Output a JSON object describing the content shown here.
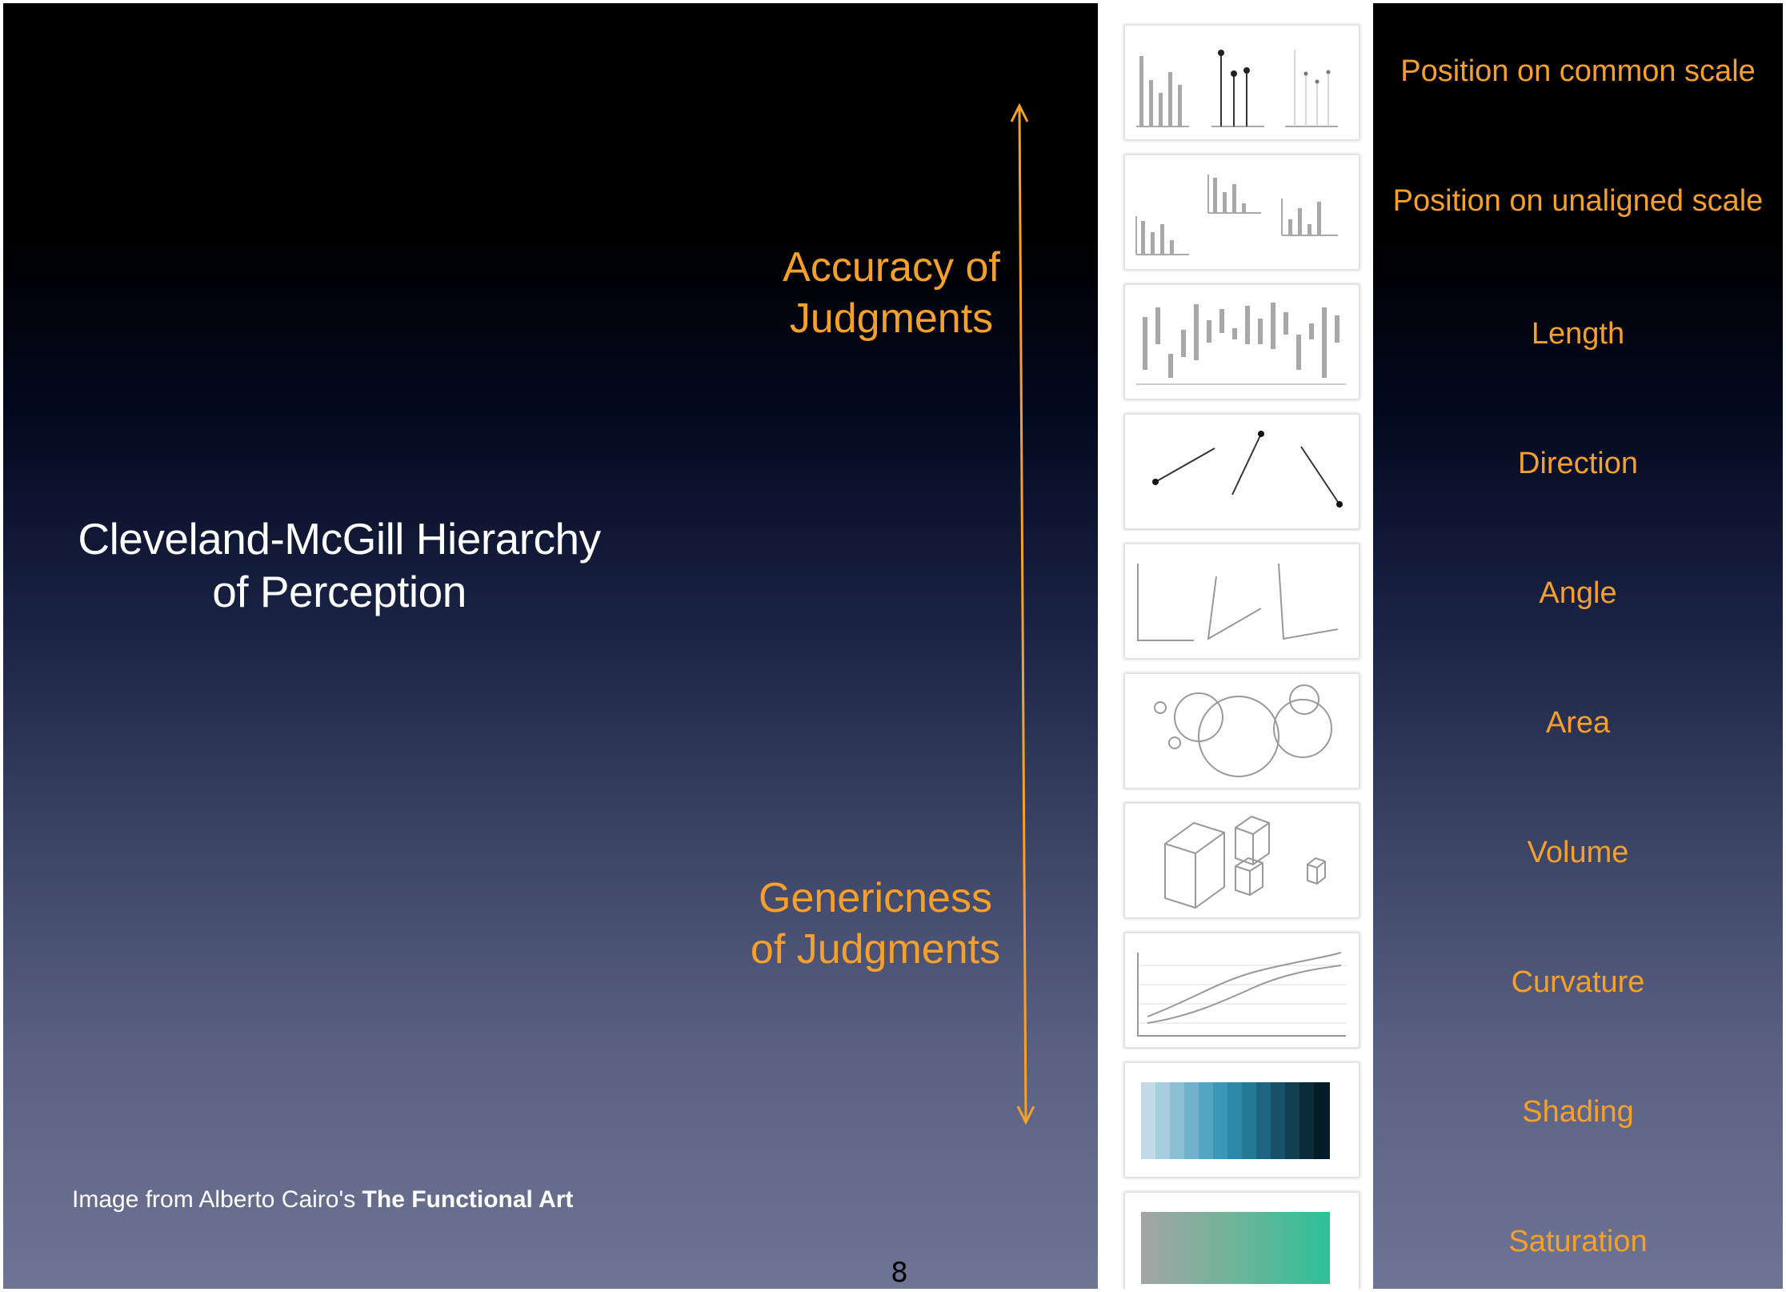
{
  "slide": {
    "title_line1": "Cleveland-McGill Hierarchy",
    "title_line2": "of Perception",
    "accuracy_line1": "Accuracy of",
    "accuracy_line2": "Judgments",
    "genericness_line1": "Genericness",
    "genericness_line2": "of Judgments",
    "credit_prefix": "Image from Alberto Cairo's ",
    "credit_book": "The Functional Art",
    "page_number": "8"
  },
  "colors": {
    "accent": "#f5a02d",
    "text": "#ffffff",
    "panel": "#ffffff"
  },
  "channels": [
    {
      "label": "Position on common scale",
      "icon": "position-common-icon"
    },
    {
      "label": "Position on unaligned scale",
      "icon": "position-unaligned-icon"
    },
    {
      "label": "Length",
      "icon": "length-icon"
    },
    {
      "label": "Direction",
      "icon": "direction-icon"
    },
    {
      "label": "Angle",
      "icon": "angle-icon"
    },
    {
      "label": "Area",
      "icon": "area-icon"
    },
    {
      "label": "Volume",
      "icon": "volume-icon"
    },
    {
      "label": "Curvature",
      "icon": "curvature-icon"
    },
    {
      "label": "Shading",
      "icon": "shading-icon"
    },
    {
      "label": "Saturation",
      "icon": "saturation-icon"
    }
  ]
}
